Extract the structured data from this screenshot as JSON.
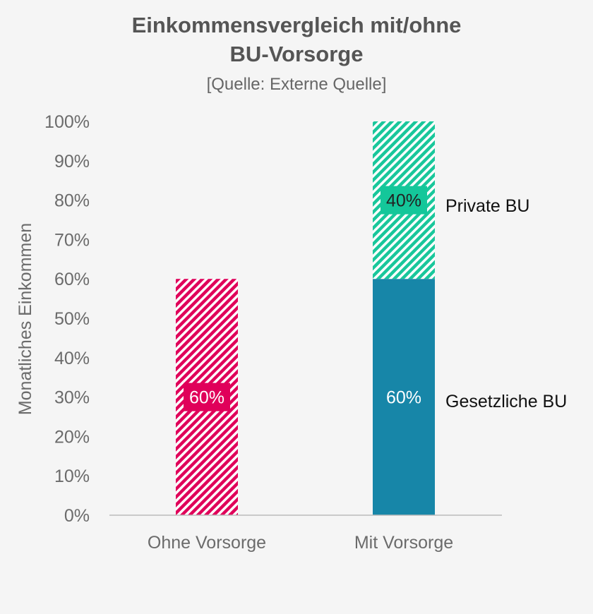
{
  "chart_data": {
    "type": "bar",
    "stacked": true,
    "title_line1": "Einkommensvergleich mit/ohne",
    "title_line2": "BU-Vorsorge",
    "subtitle": "[Quelle: Externe Quelle]",
    "ylabel": "Monatliches Einkommen",
    "ylim": [
      0,
      100
    ],
    "y_ticks": [
      "0%",
      "10%",
      "20%",
      "30%",
      "40%",
      "50%",
      "60%",
      "70%",
      "80%",
      "90%",
      "100%"
    ],
    "categories": [
      "Ohne Vorsorge",
      "Mit Vorsorge"
    ],
    "bars": [
      {
        "category": "Ohne Vorsorge",
        "segments": [
          {
            "value": 60,
            "label": "60%",
            "style": "hatched",
            "color": "#e0005a",
            "label_bg": "#e0005a",
            "label_color": "#ffffff"
          }
        ]
      },
      {
        "category": "Mit Vorsorge",
        "segments": [
          {
            "value": 60,
            "label": "60%",
            "style": "solid",
            "color": "#1786a8",
            "label_bg": "",
            "label_color": "#ffffff",
            "series": "Gesetzliche BU"
          },
          {
            "value": 40,
            "label": "40%",
            "style": "hatched",
            "color": "#19c79b",
            "label_bg": "#14c79a",
            "label_color": "#222222",
            "series": "Private BU"
          }
        ]
      }
    ],
    "series_labels": [
      "Private BU",
      "Gesetzliche BU"
    ],
    "grid": false,
    "axis_color": "#bbbbbb"
  }
}
